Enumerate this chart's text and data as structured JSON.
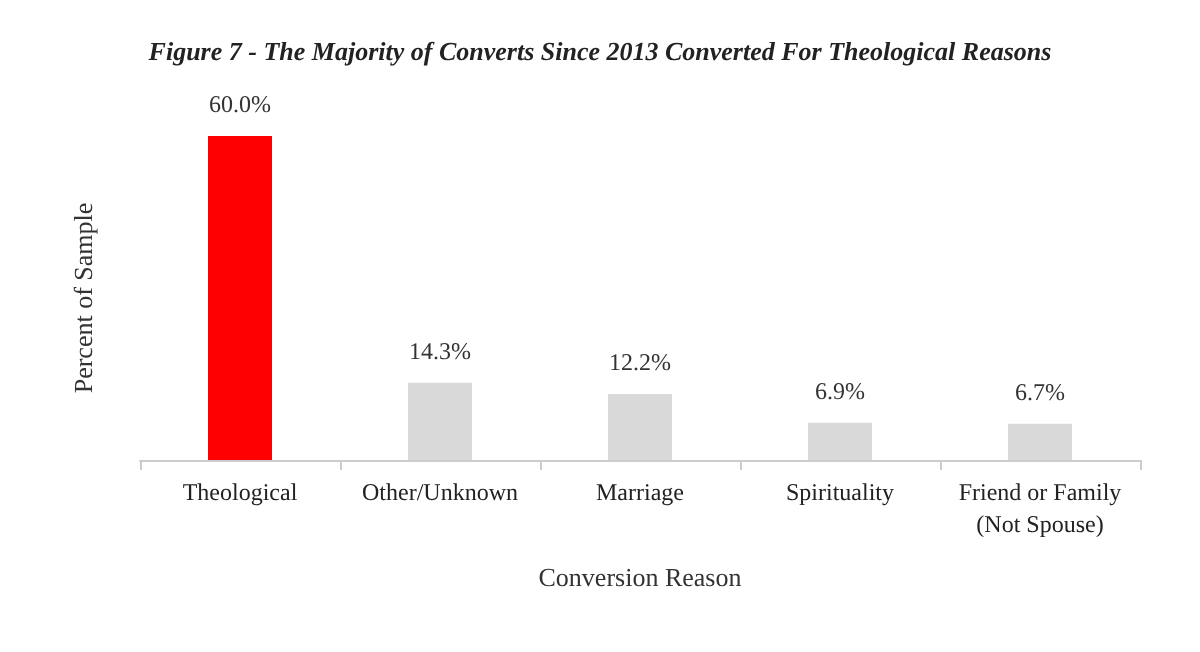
{
  "chart_data": {
    "type": "bar",
    "title": "Figure 7 - The Majority of Converts Since 2013 Converted For Theological Reasons",
    "xlabel": "Conversion Reason",
    "ylabel": "Percent of Sample",
    "categories": [
      "Theological",
      "Other/Unknown",
      "Marriage",
      "Spirituality",
      "Friend or Family\n(Not Spouse)"
    ],
    "values": [
      60.0,
      14.3,
      12.2,
      6.9,
      6.7
    ],
    "colors": [
      "#ff0000",
      "#d9d9d9",
      "#d9d9d9",
      "#d9d9d9",
      "#d9d9d9"
    ],
    "value_labels": [
      "60.0%",
      "14.3%",
      "12.2%",
      "6.9%",
      "6.7%"
    ],
    "tick_labels": "x",
    "grid": false
  }
}
